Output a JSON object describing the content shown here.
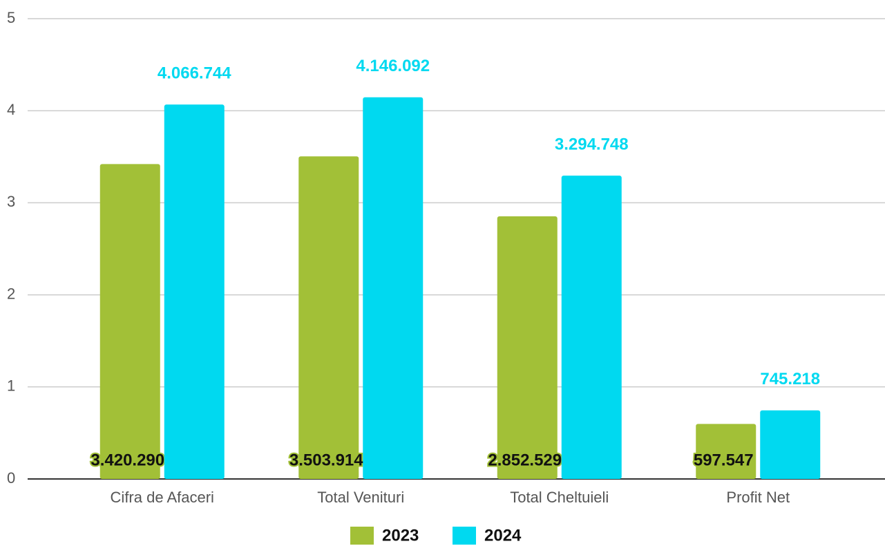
{
  "chart_data": {
    "type": "bar",
    "categories": [
      "Cifra de Afaceri",
      "Total Venituri",
      "Total Cheltuieli",
      "Profit Net"
    ],
    "series": [
      {
        "name": "2023",
        "color": "#a2c037",
        "values": [
          3.42029,
          3.503914,
          2.852529,
          0.597547
        ],
        "value_labels": [
          "3.420.290",
          "3.503.914",
          "2.852.529",
          "597.547"
        ]
      },
      {
        "name": "2024",
        "color": "#00d9f0",
        "values": [
          4.066744,
          4.146092,
          3.294748,
          0.745218
        ],
        "value_labels": [
          "4.066.744",
          "4.146.092",
          "3.294.748",
          "745.218"
        ]
      }
    ],
    "ylim": [
      0,
      5
    ],
    "yticks": [
      0,
      1,
      2,
      3,
      4,
      5
    ],
    "grid": true,
    "legend": "bottom"
  }
}
